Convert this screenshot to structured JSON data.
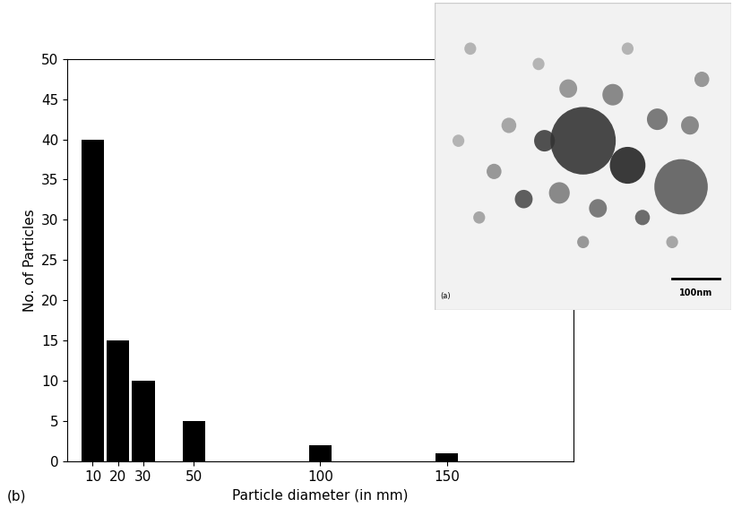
{
  "chart_data": {
    "type": "bar",
    "x": [
      10,
      20,
      30,
      50,
      100,
      150
    ],
    "values": [
      40,
      15,
      10,
      5,
      2,
      1
    ],
    "color": "#000000",
    "xlabel": "Particle diameter (in mm)",
    "ylabel": "No. of Particles",
    "xlim": [
      0,
      200
    ],
    "xticks": [
      10,
      20,
      30,
      50,
      100,
      150
    ],
    "ylim": [
      0,
      50
    ],
    "yticks": [
      0,
      5,
      10,
      15,
      20,
      25,
      30,
      35,
      40,
      45,
      50
    ],
    "grid": false,
    "annotations": [
      "(b)"
    ],
    "inset": {
      "label": "(a)",
      "scale_bar": "100nm"
    }
  }
}
